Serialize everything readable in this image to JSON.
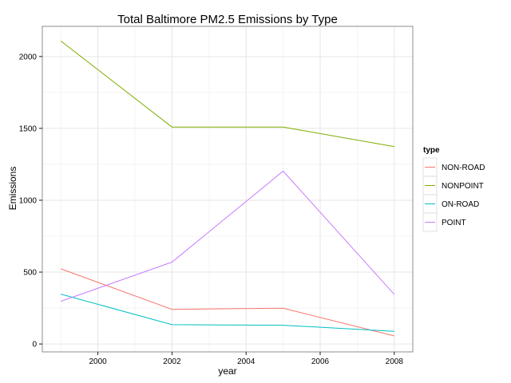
{
  "chart_data": {
    "type": "line",
    "title": "Total Baltimore PM2.5 Emissions by Type",
    "xlabel": "year",
    "ylabel": "Emissions",
    "x": [
      1999,
      2002,
      2005,
      2008
    ],
    "xlim": [
      1998.5,
      2008.5
    ],
    "ylim": [
      -55,
      2210
    ],
    "x_ticks": [
      2000,
      2002,
      2004,
      2006,
      2008
    ],
    "y_ticks": [
      0,
      500,
      1000,
      1500,
      2000
    ],
    "grid": true,
    "legend_title": "type",
    "legend_position": "right",
    "series": [
      {
        "name": "NON-ROAD",
        "color": "#F8766D",
        "values": [
          522.9,
          240.8,
          248.9,
          55.8
        ]
      },
      {
        "name": "NONPOINT",
        "color": "#7CAE00",
        "values": [
          2107.6,
          1509.5,
          1509.5,
          1373.2
        ]
      },
      {
        "name": "ON-ROAD",
        "color": "#00BFC4",
        "values": [
          346.8,
          134.3,
          130.4,
          88.3
        ]
      },
      {
        "name": "POINT",
        "color": "#C77CFF",
        "values": [
          296.8,
          569.3,
          1202.5,
          345.0
        ]
      }
    ]
  }
}
